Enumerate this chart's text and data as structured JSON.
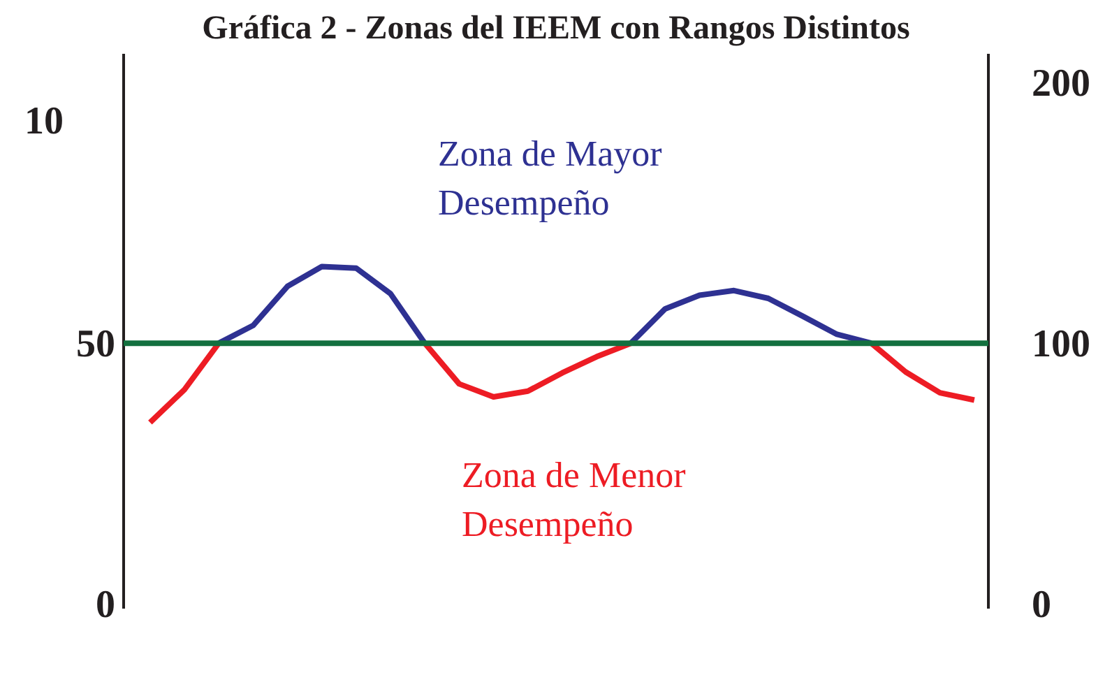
{
  "chart_data": {
    "type": "line",
    "title": "Gráfica 2 - Zonas del IEEM con Rangos Distintos",
    "categories": [
      null,
      null,
      null,
      null,
      null,
      null,
      null,
      null,
      null,
      null,
      null,
      null,
      null,
      null,
      null,
      null,
      null,
      null,
      null,
      null,
      null,
      null,
      null,
      null,
      null
    ],
    "ylim": [
      -0.9,
      105.5
    ],
    "yticks": [
      0,
      50
    ],
    "y2lim": [
      -1.8,
      211
    ],
    "y2ticks": [
      0,
      100,
      200
    ],
    "grid": false,
    "legend": false,
    "series": [
      {
        "color": "#ed1c24",
        "values": [
          34.8,
          41.1,
          50,
          null,
          null,
          null,
          null,
          null,
          50,
          42.2,
          39.7,
          40.8,
          44.3,
          47.4,
          50,
          null,
          null,
          null,
          null,
          null,
          null,
          50,
          44.5,
          40.5,
          39.1
        ]
      },
      {
        "color": "#2e3192",
        "values": [
          null,
          null,
          50,
          53.4,
          60.9,
          64.7,
          64.4,
          59.5,
          50,
          null,
          null,
          null,
          null,
          null,
          50,
          56.6,
          59.2,
          60.1,
          58.6,
          55.2,
          51.7,
          50,
          null,
          null,
          null
        ]
      }
    ],
    "ref_lines": [
      {
        "axis": "y",
        "value": 50,
        "color": "#13703f"
      }
    ],
    "annotations": [
      "10",
      "Zona de Mayor\nDesempeño",
      "Zona de Menor\nDesempeño"
    ]
  }
}
